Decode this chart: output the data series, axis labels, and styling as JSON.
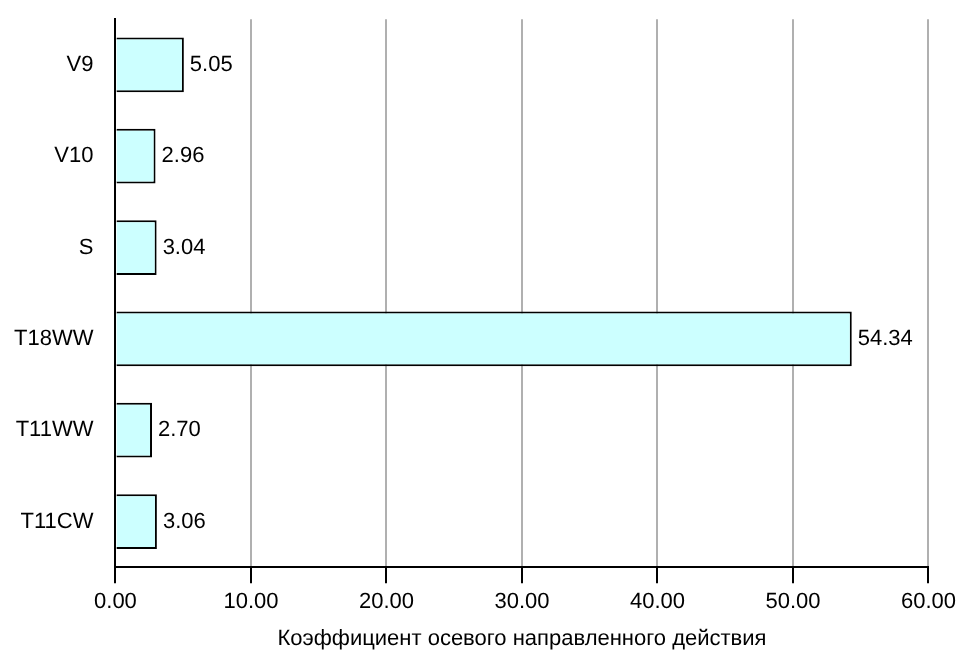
{
  "chart_data": {
    "type": "bar",
    "orientation": "horizontal",
    "xlabel": "Коэффициент осевого направленного действия",
    "categories": [
      "V9",
      "V10",
      "S",
      "T18WW",
      "T11WW",
      "T11CW"
    ],
    "values": [
      5.05,
      2.96,
      3.04,
      54.34,
      2.7,
      3.06
    ],
    "value_labels": [
      "5.05",
      "2.96",
      "3.04",
      "54.34",
      "2.70",
      "3.06"
    ],
    "color": "#ccffff",
    "xlim": [
      0,
      60
    ],
    "xticks": [
      {
        "value": 0,
        "label": "0.00"
      },
      {
        "value": 10,
        "label": "10.00"
      },
      {
        "value": 20,
        "label": "20.00"
      },
      {
        "value": 30,
        "label": "30.00"
      },
      {
        "value": 40,
        "label": "40.00"
      },
      {
        "value": 50,
        "label": "50.00"
      },
      {
        "value": 60,
        "label": "60.00"
      }
    ],
    "grid": "x"
  }
}
